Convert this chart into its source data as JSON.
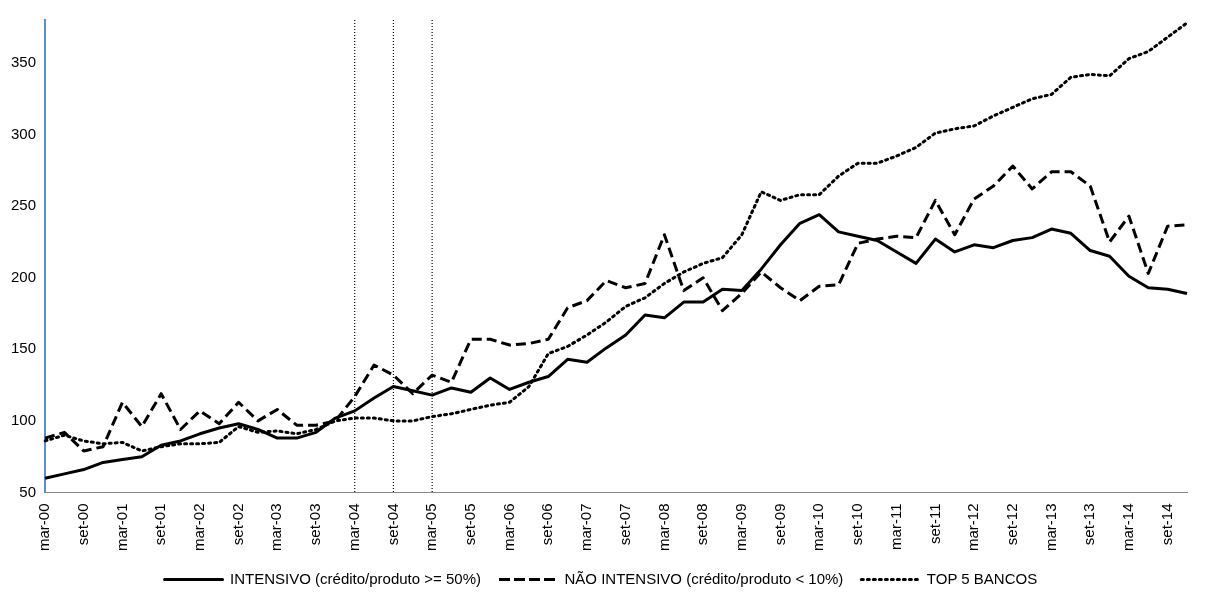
{
  "chart_data": {
    "type": "line",
    "categories": [
      "mar-00",
      null,
      "set-00",
      null,
      "mar-01",
      null,
      "set-01",
      null,
      "mar-02",
      null,
      "set-02",
      null,
      "mar-03",
      null,
      "set-03",
      null,
      "mar-04",
      null,
      "set-04",
      null,
      "mar-05",
      null,
      "set-05",
      null,
      "mar-06",
      null,
      "set-06",
      null,
      "mar-07",
      null,
      "set-07",
      null,
      "mar-08",
      null,
      "set-08",
      null,
      "mar-09",
      null,
      "set-09",
      null,
      "mar-10",
      null,
      "set-10",
      null,
      "mar-11",
      null,
      "set-11",
      null,
      "mar-12",
      null,
      "set-12",
      null,
      "mar-13",
      null,
      "set-13",
      null,
      "mar-14",
      null,
      "set-14",
      null
    ],
    "series": [
      {
        "name": "INTENSIVO (crédito/produto >= 50%)",
        "color": "#000000",
        "line_style": "solid",
        "values": [
          60,
          63,
          66,
          71,
          73,
          75,
          83,
          86,
          91,
          95,
          98,
          94,
          88,
          88,
          92,
          102,
          107,
          116,
          124,
          121,
          118,
          123,
          120,
          130,
          122,
          127,
          131,
          143,
          141,
          151,
          160,
          174,
          172,
          183,
          183,
          192,
          191,
          206,
          223,
          238,
          244,
          232,
          229,
          226,
          218,
          210,
          227,
          218,
          223,
          221,
          226,
          228,
          234,
          231,
          219,
          215,
          201,
          193,
          192,
          189
        ]
      },
      {
        "name": "NÃO INTENSIVO (crédito/produto < 10%)",
        "color": "#000000",
        "line_style": "dashed",
        "values": [
          88,
          92,
          79,
          82,
          113,
          96,
          119,
          94,
          107,
          98,
          113,
          100,
          108,
          97,
          97,
          100,
          117,
          139,
          132,
          119,
          132,
          127,
          157,
          157,
          153,
          154,
          157,
          179,
          184,
          198,
          193,
          196,
          230,
          191,
          200,
          177,
          189,
          204,
          193,
          184,
          194,
          195,
          224,
          227,
          229,
          228,
          254,
          230,
          255,
          264,
          278,
          262,
          274,
          274,
          264,
          225,
          243,
          203,
          236,
          237
        ]
      },
      {
        "name": "TOP 5 BANCOS",
        "color": "#000000",
        "line_style": "dotted",
        "values": [
          86,
          90,
          86,
          84,
          85,
          79,
          82,
          84,
          84,
          85,
          96,
          92,
          93,
          91,
          94,
          100,
          102,
          102,
          100,
          100,
          103,
          105,
          108,
          111,
          113,
          124,
          147,
          152,
          160,
          169,
          180,
          186,
          196,
          204,
          210,
          214,
          230,
          260,
          254,
          258,
          258,
          271,
          280,
          280,
          285,
          291,
          301,
          304,
          306,
          313,
          319,
          325,
          328,
          340,
          342,
          341,
          353,
          358,
          368,
          378
        ]
      }
    ],
    "ylim": [
      50,
      380
    ],
    "yticks": [
      50,
      100,
      150,
      200,
      250,
      300,
      350
    ],
    "ref_lines": [
      {
        "axis": "x",
        "value": "mar-04",
        "color": "#000000",
        "line_style": "dotted"
      },
      {
        "axis": "x",
        "value": "set-04",
        "color": "#000000",
        "line_style": "dotted"
      },
      {
        "axis": "x",
        "value": "mar-05",
        "color": "#000000",
        "line_style": "dotted"
      }
    ],
    "grid": false,
    "legend": "bottom",
    "marker": "none"
  }
}
